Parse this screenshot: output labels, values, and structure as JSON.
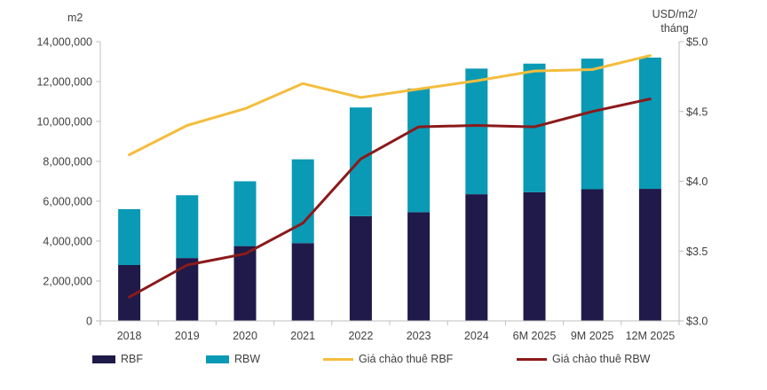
{
  "chart_data": {
    "type": "bar",
    "title": "",
    "categories": [
      "2018",
      "2019",
      "2020",
      "2021",
      "2022",
      "2023",
      "2024",
      "6M 2025",
      "9M 2025",
      "12M 2025"
    ],
    "series": [
      {
        "name": "RBF",
        "kind": "stacked-bar",
        "axis": "left",
        "color": "#1f1a4a",
        "values": [
          2800000,
          3150000,
          3750000,
          3900000,
          5250000,
          5450000,
          6350000,
          6450000,
          6600000,
          6620000
        ]
      },
      {
        "name": "RBW",
        "kind": "stacked-bar",
        "axis": "left",
        "color": "#0a9ab5",
        "values": [
          2800000,
          3150000,
          3250000,
          4200000,
          5450000,
          6200000,
          6300000,
          6450000,
          6550000,
          6580000
        ]
      },
      {
        "name": "Giá chào thuê RBF",
        "kind": "line",
        "axis": "right",
        "color": "#f4bd3d",
        "values": [
          4.19,
          4.4,
          4.52,
          4.7,
          4.6,
          4.66,
          4.72,
          4.79,
          4.8,
          4.9
        ]
      },
      {
        "name": "Giá chào thuê RBW",
        "kind": "line",
        "axis": "right",
        "color": "#8b1a1a",
        "values": [
          3.17,
          3.4,
          3.48,
          3.7,
          4.16,
          4.39,
          4.4,
          4.39,
          4.5,
          4.59
        ]
      }
    ],
    "y_left": {
      "label": "m2",
      "ylim": [
        0,
        14000000
      ],
      "ticks": [
        "0",
        "2,000,000",
        "4,000,000",
        "6,000,000",
        "8,000,000",
        "10,000,000",
        "12,000,000",
        "14,000,000"
      ]
    },
    "y_right": {
      "label_lines": [
        "USD/m2/",
        "tháng"
      ],
      "ylim": [
        3.0,
        5.0
      ],
      "ticks": [
        "$3.0",
        "$3.5",
        "$4.0",
        "$4.5",
        "$5.0"
      ]
    },
    "grid": false,
    "legend_position": "bottom"
  }
}
